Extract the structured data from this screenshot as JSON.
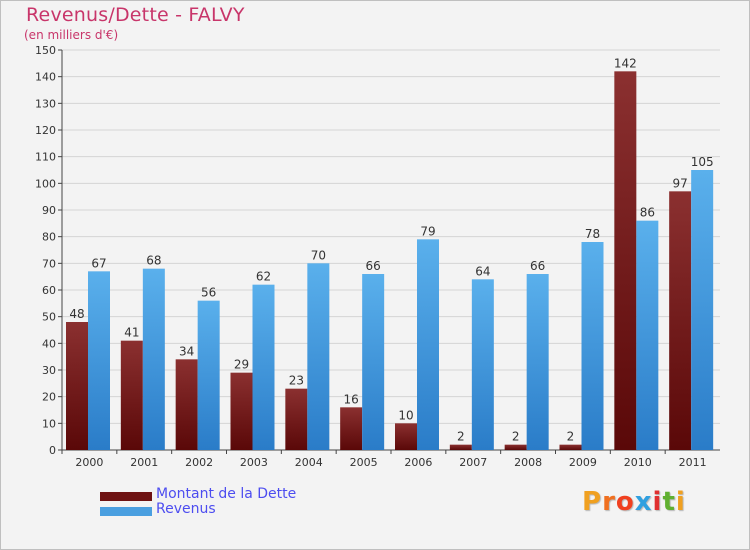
{
  "chart_data": {
    "type": "bar",
    "title": "Revenus/Dette - FALVY",
    "subtitle": "(en milliers d'€)",
    "categories": [
      "2000",
      "2001",
      "2002",
      "2003",
      "2004",
      "2005",
      "2006",
      "2007",
      "2008",
      "2009",
      "2010",
      "2011"
    ],
    "series": [
      {
        "name": "Montant de la Dette",
        "color": "#7a1a1a",
        "values": [
          48,
          41,
          34,
          29,
          23,
          16,
          10,
          2,
          2,
          2,
          142,
          97
        ]
      },
      {
        "name": "Revenus",
        "color": "#4a9fe0",
        "values": [
          67,
          68,
          56,
          62,
          70,
          66,
          79,
          64,
          66,
          78,
          86,
          105
        ]
      }
    ],
    "ylim": [
      0,
      150
    ],
    "yticks": [
      0,
      10,
      20,
      30,
      40,
      50,
      60,
      70,
      80,
      90,
      100,
      110,
      120,
      130,
      140,
      150
    ],
    "grid": true,
    "legend": "bottom-left"
  },
  "logo": {
    "text": "Proxiti",
    "colors": [
      "#f0a020",
      "#f07020",
      "#f04020",
      "#30a0e0",
      "#e03030",
      "#60b030",
      "#f0a020"
    ]
  }
}
